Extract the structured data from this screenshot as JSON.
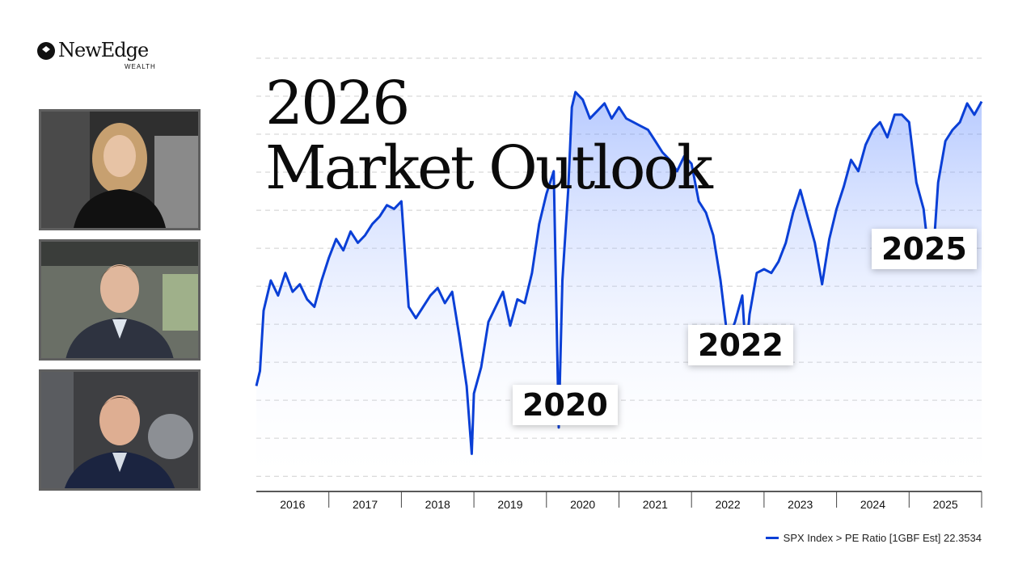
{
  "logo": {
    "name": "NewEdge",
    "sub": "WEALTH"
  },
  "title": {
    "line1": "2026",
    "line2": "Market Outlook"
  },
  "presenters": [
    {
      "name_icon": "presenter-1-video",
      "bg": "#2f2f2f",
      "skin": "#e7c3a5",
      "hair": "#c7a070",
      "shirt": "#111111"
    },
    {
      "name_icon": "presenter-2-video",
      "bg": "#6a6f66",
      "skin": "#e0b79c",
      "hair": "#5b4430",
      "shirt": "#2e3340"
    },
    {
      "name_icon": "presenter-3-video",
      "bg": "#3e3f42",
      "skin": "#deae92",
      "hair": "#3b2a20",
      "shirt": "#1b2440"
    }
  ],
  "colors": {
    "line": "#0a3fd6",
    "fill_top": "#5b86ff",
    "fill_bottom": "#ffffff",
    "grid": "#cfcfcf"
  },
  "callouts": [
    {
      "label": "2020",
      "anchor_year": 2020.05
    },
    {
      "label": "2022",
      "anchor_year": 2022.75
    },
    {
      "label": "2025",
      "anchor_year": 2025.3
    }
  ],
  "legend": {
    "label": "SPX Index > PE Ratio [1GBF Est] 22.3534"
  },
  "chart_data": {
    "type": "area",
    "title": "",
    "xlabel": "",
    "ylabel": "",
    "x_ticks": [
      "2016",
      "2017",
      "2018",
      "2019",
      "2020",
      "2021",
      "2022",
      "2023",
      "2024",
      "2025"
    ],
    "xlim": [
      2016.0,
      2026.0
    ],
    "ylim": [
      12.0,
      23.5
    ],
    "grid": "horizontal-dashed",
    "legend_position": "bottom-right",
    "series": [
      {
        "name": "SPX Index > PE Ratio [1GBF Est] 22.3534",
        "x": [
          2016.0,
          2016.05,
          2016.1,
          2016.2,
          2016.3,
          2016.4,
          2016.5,
          2016.6,
          2016.7,
          2016.8,
          2016.9,
          2017.0,
          2017.1,
          2017.2,
          2017.3,
          2017.4,
          2017.5,
          2017.6,
          2017.7,
          2017.8,
          2017.9,
          2018.0,
          2018.05,
          2018.1,
          2018.2,
          2018.3,
          2018.4,
          2018.5,
          2018.6,
          2018.7,
          2018.8,
          2018.9,
          2018.97,
          2019.0,
          2019.1,
          2019.2,
          2019.3,
          2019.4,
          2019.5,
          2019.6,
          2019.7,
          2019.8,
          2019.9,
          2020.0,
          2020.1,
          2020.17,
          2020.22,
          2020.3,
          2020.35,
          2020.4,
          2020.5,
          2020.6,
          2020.7,
          2020.8,
          2020.9,
          2021.0,
          2021.1,
          2021.2,
          2021.3,
          2021.4,
          2021.5,
          2021.6,
          2021.7,
          2021.8,
          2021.9,
          2022.0,
          2022.1,
          2022.2,
          2022.3,
          2022.4,
          2022.5,
          2022.6,
          2022.7,
          2022.75,
          2022.8,
          2022.9,
          2023.0,
          2023.1,
          2023.2,
          2023.3,
          2023.4,
          2023.5,
          2023.6,
          2023.7,
          2023.8,
          2023.9,
          2024.0,
          2024.1,
          2024.2,
          2024.3,
          2024.4,
          2024.5,
          2024.6,
          2024.7,
          2024.8,
          2024.9,
          2025.0,
          2025.1,
          2025.2,
          2025.27,
          2025.33,
          2025.4,
          2025.5,
          2025.6,
          2025.7,
          2025.8,
          2025.9,
          2026.0
        ],
        "values": [
          14.8,
          15.2,
          16.8,
          17.6,
          17.2,
          17.8,
          17.3,
          17.5,
          17.1,
          16.9,
          17.6,
          18.2,
          18.7,
          18.4,
          18.9,
          18.6,
          18.8,
          19.1,
          19.3,
          19.6,
          19.5,
          19.7,
          18.3,
          16.9,
          16.6,
          16.9,
          17.2,
          17.4,
          17.0,
          17.3,
          16.1,
          14.8,
          13.0,
          14.6,
          15.3,
          16.5,
          16.9,
          17.3,
          16.4,
          17.1,
          17.0,
          17.8,
          19.1,
          19.9,
          20.5,
          13.7,
          17.6,
          20.0,
          22.2,
          22.6,
          22.4,
          21.9,
          22.1,
          22.3,
          21.9,
          22.2,
          21.9,
          21.8,
          21.7,
          21.6,
          21.3,
          21.0,
          20.8,
          20.5,
          20.9,
          20.7,
          19.7,
          19.4,
          18.8,
          17.6,
          16.0,
          16.5,
          17.2,
          15.6,
          16.7,
          17.8,
          17.9,
          17.8,
          18.1,
          18.6,
          19.4,
          20.0,
          19.3,
          18.6,
          17.5,
          18.7,
          19.5,
          20.1,
          20.8,
          20.5,
          21.2,
          21.6,
          21.8,
          21.4,
          22.0,
          22.0,
          21.8,
          20.2,
          19.5,
          18.3,
          18.2,
          20.2,
          21.3,
          21.6,
          21.8,
          22.3,
          22.0,
          22.35
        ]
      }
    ]
  }
}
